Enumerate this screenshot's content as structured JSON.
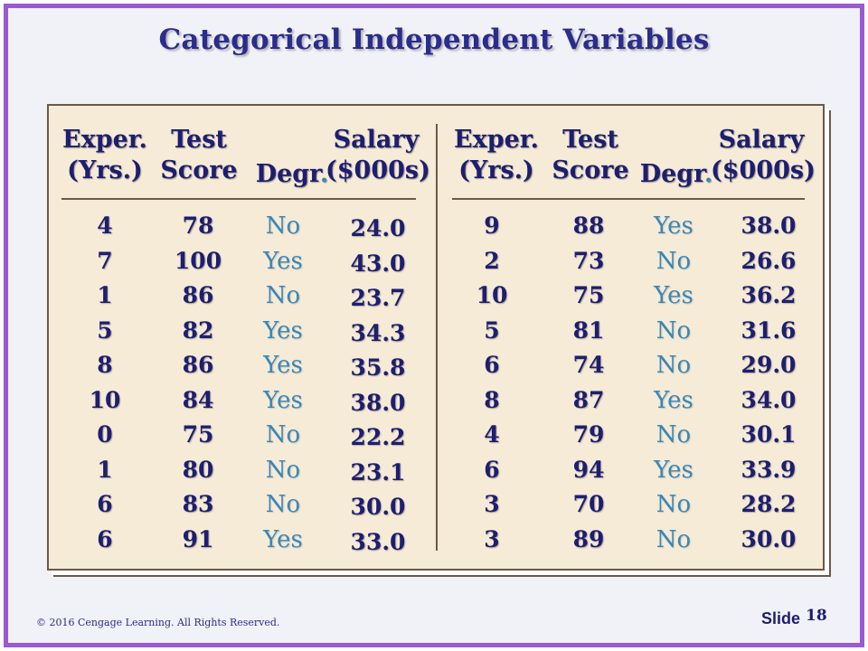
{
  "title": "Categorical Independent Variables",
  "colors": {
    "frame": "#9b59d3",
    "title": "#2a2d8c",
    "text": "#1e1e70",
    "yes_no": "#3a87b8",
    "panel": "#f5ebd7"
  },
  "headers": {
    "exper_line1": "Exper.",
    "exper_line2": "(Yrs.)",
    "test_line1": "Test",
    "test_line2": "Score",
    "degr": "Degr",
    "degr_dot": ".",
    "salary_line1": "Salary",
    "salary_line2": "($000s)"
  },
  "left_table": {
    "exper": [
      "4",
      "7",
      "1",
      "5",
      "8",
      "10",
      "0",
      "1",
      "6",
      "6"
    ],
    "test": [
      "78",
      "100",
      "86",
      "82",
      "86",
      "84",
      "75",
      "80",
      "83",
      "91"
    ],
    "degr": [
      "No",
      "Yes",
      "No",
      "Yes",
      "Yes",
      "Yes",
      "No",
      "No",
      "No",
      "Yes"
    ],
    "salary": [
      "24.0",
      "43.0",
      "23.7",
      "34.3",
      "35.8",
      "38.0",
      "22.2",
      "23.1",
      "30.0",
      "33.0"
    ]
  },
  "right_table": {
    "exper": [
      "9",
      "2",
      "10",
      "5",
      "6",
      "8",
      "4",
      "6",
      "3",
      "3"
    ],
    "test": [
      "88",
      "73",
      "75",
      "81",
      "74",
      "87",
      "79",
      "94",
      "70",
      "89"
    ],
    "degr": [
      "Yes",
      "No",
      "Yes",
      "No",
      "No",
      "Yes",
      "No",
      "Yes",
      "No",
      "No"
    ],
    "salary": [
      "38.0",
      "26.6",
      "36.2",
      "31.6",
      "29.0",
      "34.0",
      "30.1",
      "33.9",
      "28.2",
      "30.0"
    ]
  },
  "footer": {
    "copyright": "© 2016 Cengage Learning.  All Rights Reserved.",
    "slide_label": "Slide",
    "slide_number": "18"
  }
}
